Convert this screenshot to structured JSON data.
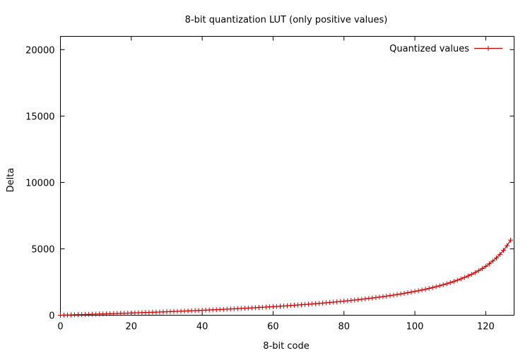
{
  "chart_data": {
    "type": "line",
    "title": "8-bit quantization LUT (only positive values)",
    "xlabel": "8-bit code",
    "ylabel": "Delta",
    "xlim": [
      0,
      128
    ],
    "ylim": [
      0,
      21000
    ],
    "xticks": [
      0,
      20,
      40,
      60,
      80,
      100,
      120
    ],
    "yticks": [
      0,
      5000,
      10000,
      15000,
      20000
    ],
    "grid": false,
    "legend_position": "top-right",
    "series": [
      {
        "name": "Quantized values",
        "color": "#cc0000",
        "marker": "plus",
        "x": [
          0,
          1,
          2,
          3,
          4,
          5,
          6,
          7,
          8,
          9,
          10,
          11,
          12,
          13,
          14,
          15,
          16,
          17,
          18,
          19,
          20,
          21,
          22,
          23,
          24,
          25,
          26,
          27,
          28,
          29,
          30,
          31,
          32,
          33,
          34,
          35,
          36,
          37,
          38,
          39,
          40,
          41,
          42,
          43,
          44,
          45,
          46,
          47,
          48,
          49,
          50,
          51,
          52,
          53,
          54,
          55,
          56,
          57,
          58,
          59,
          60,
          61,
          62,
          63,
          64,
          65,
          66,
          67,
          68,
          69,
          70,
          71,
          72,
          73,
          74,
          75,
          76,
          77,
          78,
          79,
          80,
          81,
          82,
          83,
          84,
          85,
          86,
          87,
          88,
          89,
          90,
          91,
          92,
          93,
          94,
          95,
          96,
          97,
          98,
          99,
          100,
          101,
          102,
          103,
          104,
          105,
          106,
          107,
          108,
          109,
          110,
          111,
          112,
          113,
          114,
          115,
          116,
          117,
          118,
          119,
          120,
          121,
          122,
          123,
          124,
          125,
          126,
          127
        ],
        "y": [
          0,
          8,
          16,
          24,
          32,
          40,
          48,
          57,
          65,
          73,
          81,
          90,
          98,
          106,
          115,
          124,
          132,
          141,
          150,
          159,
          168,
          177,
          186,
          195,
          205,
          214,
          224,
          233,
          243,
          253,
          263,
          273,
          283,
          294,
          304,
          315,
          326,
          337,
          348,
          359,
          371,
          382,
          394,
          406,
          418,
          431,
          444,
          456,
          469,
          483,
          496,
          510,
          524,
          538,
          553,
          567,
          583,
          598,
          614,
          630,
          646,
          662,
          679,
          697,
          714,
          732,
          751,
          770,
          789,
          808,
          829,
          849,
          870,
          892,
          914,
          937,
          960,
          984,
          1008,
          1034,
          1060,
          1086,
          1114,
          1142,
          1171,
          1201,
          1232,
          1264,
          1296,
          1330,
          1365,
          1401,
          1439,
          1477,
          1517,
          1559,
          1602,
          1647,
          1694,
          1742,
          1793,
          1846,
          1901,
          1959,
          2019,
          2083,
          2149,
          2220,
          2294,
          2372,
          2455,
          2543,
          2637,
          2736,
          2843,
          2957,
          3080,
          3213,
          3356,
          3513,
          3684,
          3873,
          4082,
          4317,
          4582,
          4885,
          5237,
          5653
        ]
      }
    ]
  }
}
